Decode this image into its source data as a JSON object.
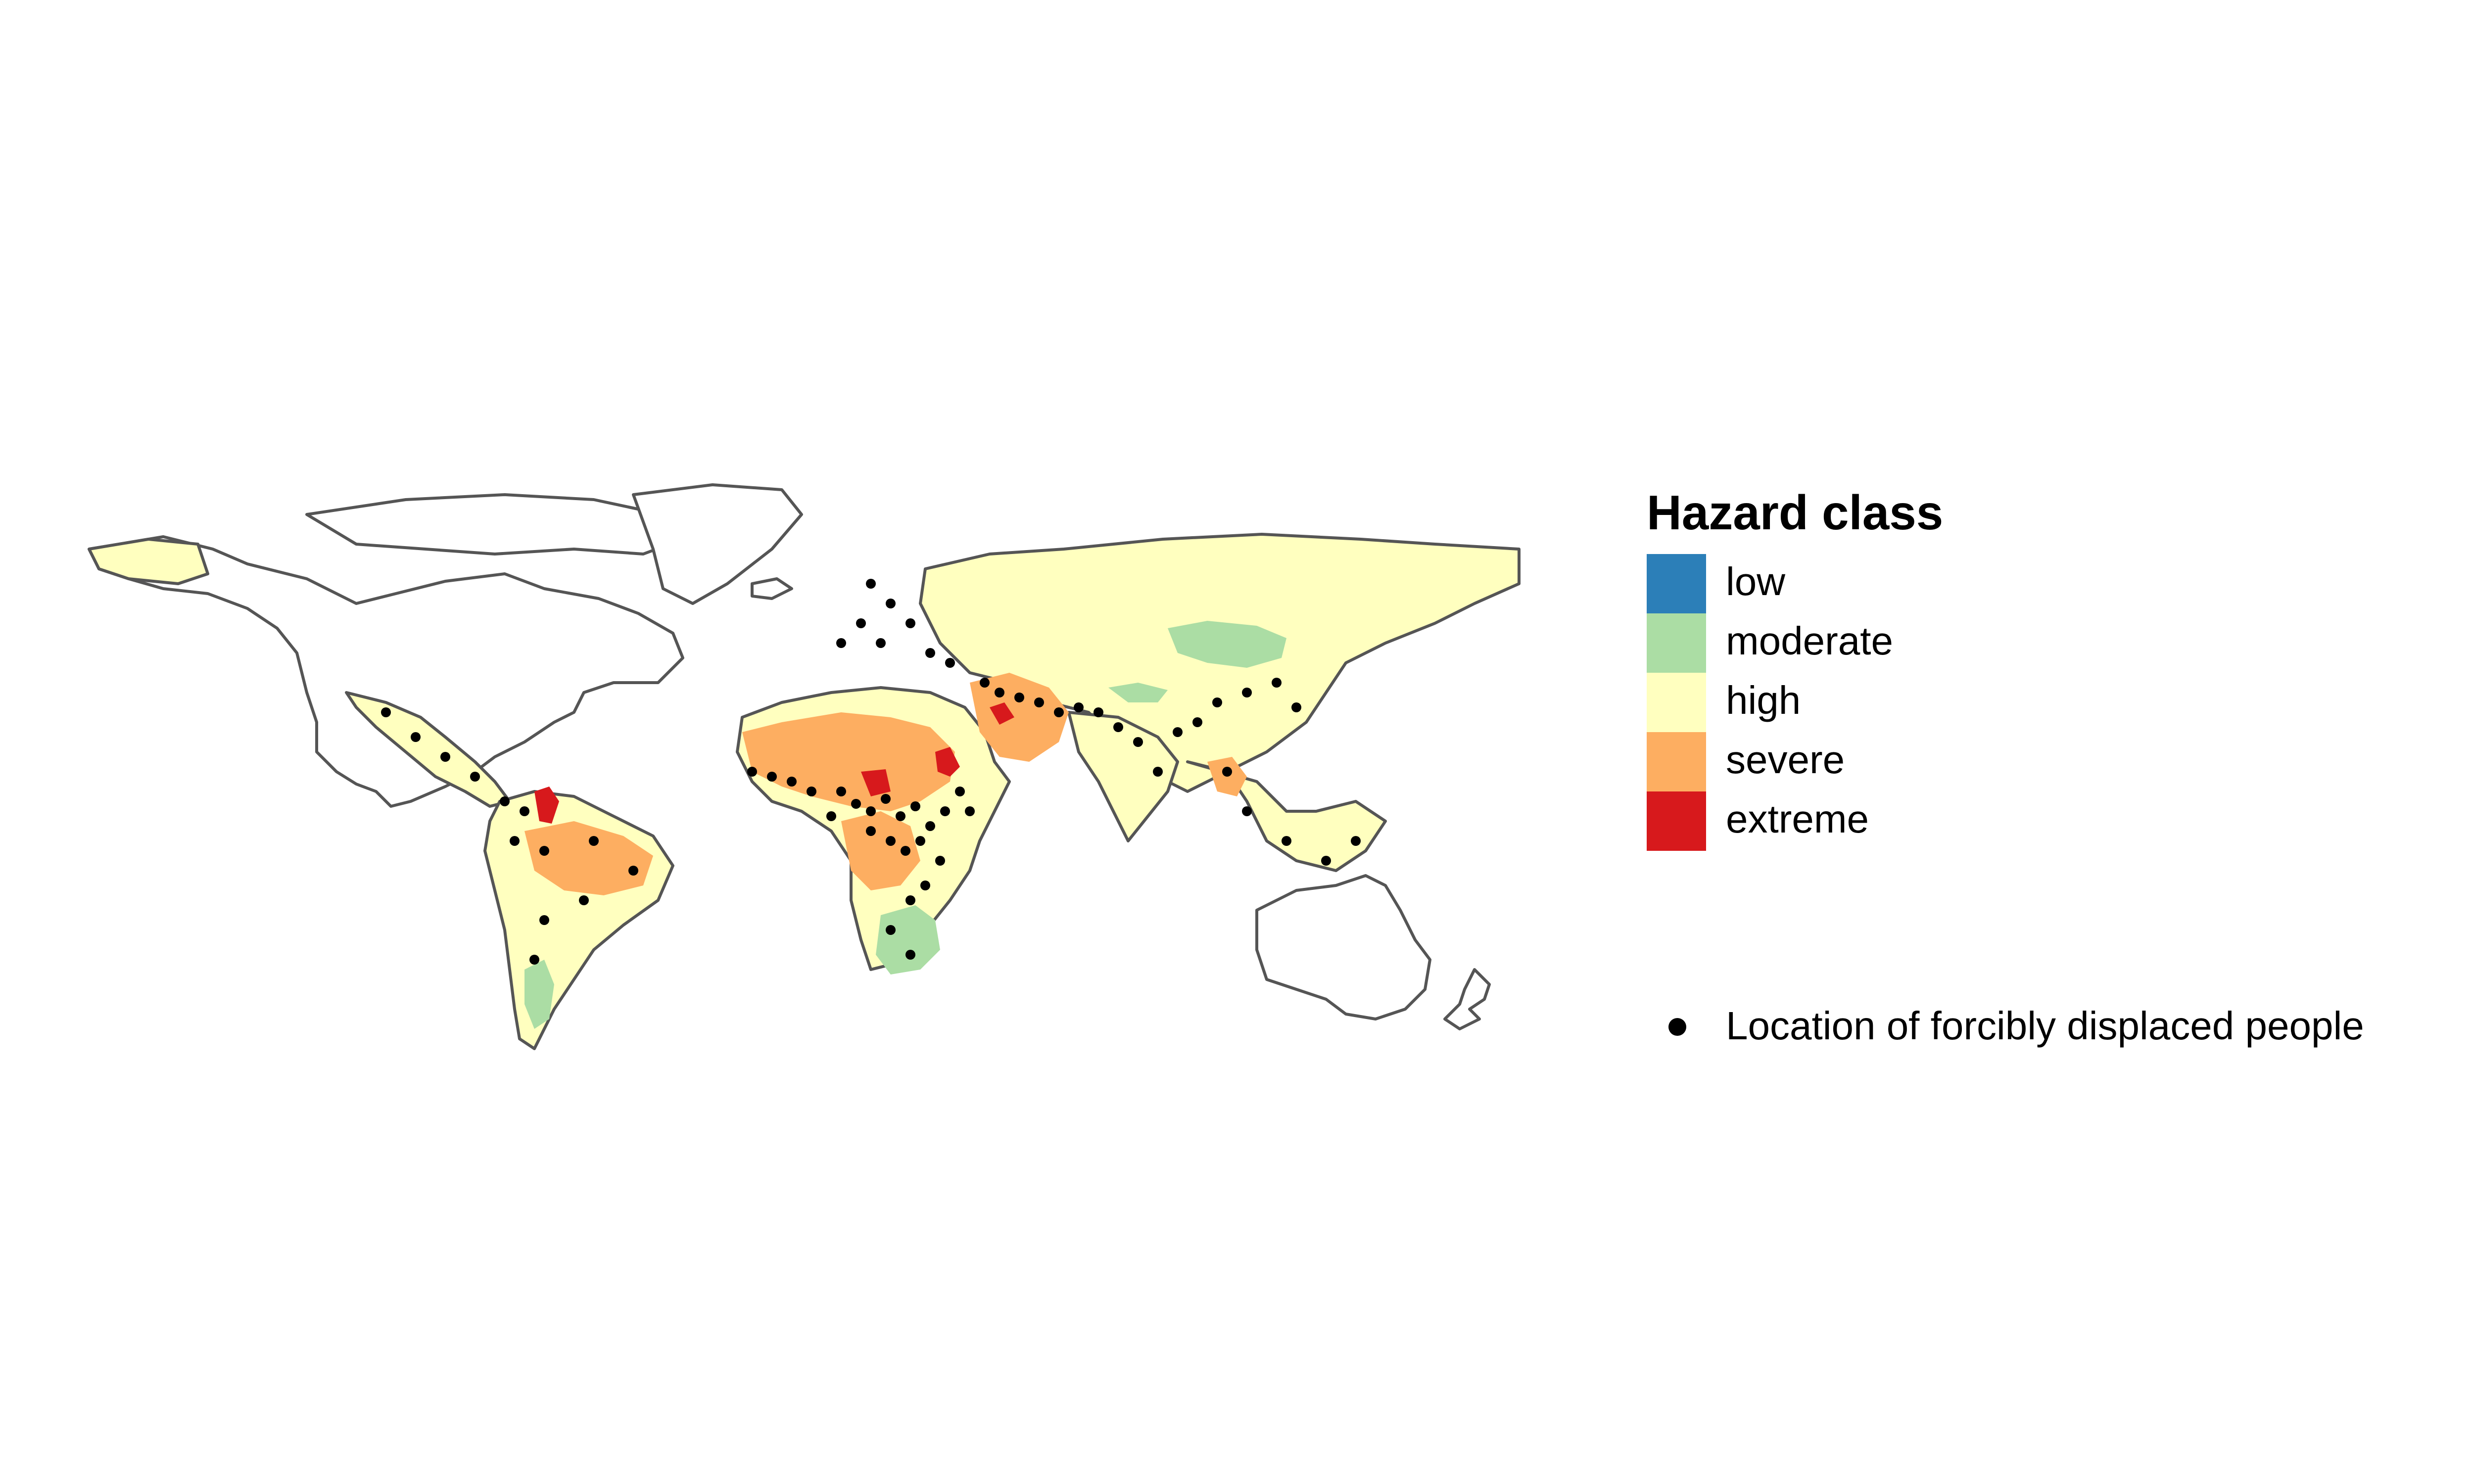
{
  "legend": {
    "title": "Hazard class",
    "classes": [
      {
        "label": "low",
        "color": "#2c7fb8"
      },
      {
        "label": "moderate",
        "color": "#abdda4"
      },
      {
        "label": "high",
        "color": "#ffffbf"
      },
      {
        "label": "severe",
        "color": "#fdae61"
      },
      {
        "label": "extreme",
        "color": "#d7191c"
      }
    ],
    "points_label": "Location of forcibly displaced people"
  },
  "map": {
    "projection": "equirectangular",
    "border_color": "#555555",
    "no_data_fill": "#ffffff",
    "point_color": "#000000"
  }
}
